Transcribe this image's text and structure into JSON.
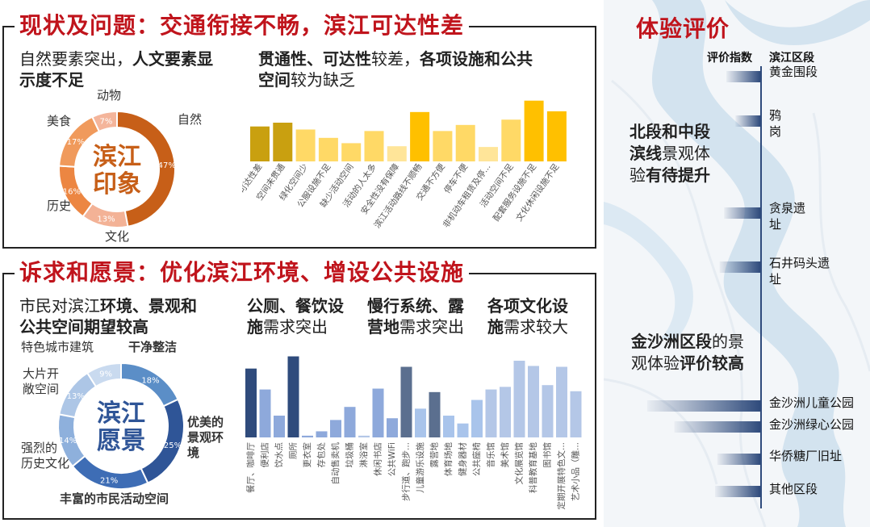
{
  "top_title": "现状及问题：交通衔接不畅，滨江可达性差",
  "bottom_title": "诉求和愿景：优化滨江环境、增设公共设施",
  "right_title": "体验评价",
  "top_left": {
    "line1_a": "自然要素突出，",
    "line1_b": "人文要素显",
    "line2_b": "示度不足"
  },
  "top_mid": {
    "line1_b1": "贯通性、可达性",
    "line1_a": "较差，",
    "line1_b2": "各项设施和公共",
    "line2_b": "空间",
    "line2_a": "较为缺乏"
  },
  "bottom_left": {
    "line1_a": "市民对滨江",
    "line1_b": "环境、景观和",
    "line2_b": "公共空间期望较高"
  },
  "bottom_mid": {
    "t1_l1_b": "公厕、餐饮设",
    "t1_l2_b": "施",
    "t1_l2_a": "需求突出",
    "t2_l1_b": "慢行系统、露",
    "t2_l2_b": "营地",
    "t2_l2_a": "需求突出",
    "t3_l1_b": "各项文化设",
    "t3_l2_b": "施",
    "t3_l2_a": "需求较大"
  },
  "right": {
    "header_score": "评价指数",
    "header_section": "滨江区段",
    "text1_l1_b": "北段和中段",
    "text1_l2_b": "滨线",
    "text1_l2_a": "景观体",
    "text1_l3_a": "验",
    "text1_l3_b": "有待提升",
    "text2_l1_b": "金沙洲区段",
    "text2_l1_a": "的景",
    "text2_l2_a": "观体验",
    "text2_l2_b": "评价较高"
  },
  "colors": {
    "title_red": "#c0141c",
    "orange_dark": "#c75f18",
    "blue_dark": "#2f5597",
    "gold": "#ffc000",
    "map_water": "#d3e3ef",
    "bar_navy": "#2f4b7c"
  },
  "chart_data": [
    {
      "type": "pie",
      "subtype": "donut",
      "center_label": [
        "滨江",
        "印象"
      ],
      "categories": [
        "自然",
        "文化",
        "历史",
        "美食",
        "动物"
      ],
      "values": [
        47,
        13,
        16,
        17,
        7
      ],
      "value_labels": [
        "47%",
        "13%",
        "16%",
        "17%",
        "7%"
      ],
      "colors": [
        "#c75f18",
        "#f3b296",
        "#ec8642",
        "#f09a5c",
        "#f4b59b"
      ]
    },
    {
      "type": "bar",
      "categories": [
        "可达性差",
        "空间未贯通",
        "绿化空间少",
        "公服设施不足",
        "缺少活动空间",
        "活动的人太多",
        "安全性没有保障",
        "滨江活动路线不顺畅",
        "交通不方便",
        "停车不便",
        "非机动车租赁及停...",
        "活动空间不足",
        "配套服务设施不足",
        "文化休闲设施不足"
      ],
      "values": [
        46,
        51,
        42,
        31,
        24,
        40,
        20,
        65,
        40,
        48,
        19,
        55,
        80,
        66
      ],
      "colors": [
        "#c9a010",
        "#c9a010",
        "#ffd966",
        "#ffd966",
        "#ffd966",
        "#ffd966",
        "#ffe599",
        "#ffc000",
        "#ffd966",
        "#ffd966",
        "#ffe599",
        "#ffd966",
        "#ffc000",
        "#ffc000"
      ],
      "ylim": [
        0,
        85
      ]
    },
    {
      "type": "pie",
      "subtype": "donut",
      "center_label": [
        "滨江",
        "愿景"
      ],
      "categories": [
        "干净整洁",
        "优美的景观环境",
        "丰富的市民活动空间",
        "强烈的历史文化",
        "大片开敞空间",
        "特色城市建筑"
      ],
      "values": [
        18,
        25,
        21,
        14,
        13,
        9
      ],
      "value_labels": [
        "18%",
        "25%",
        "21%",
        "14%",
        "13%",
        "9%"
      ],
      "colors": [
        "#5b8ec7",
        "#2f5597",
        "#3e6db5",
        "#8eb0dc",
        "#adc6e6",
        "#c9daef"
      ]
    },
    {
      "type": "bar",
      "categories": [
        "餐厅、咖啡厅",
        "便利店",
        "饮水点",
        "厕所",
        "更衣室",
        "存包处",
        "自动售卖机",
        "垃圾桶",
        "淋浴室",
        "休闲书店",
        "公共WiFi",
        "步行道、跑步...",
        "儿童游乐设施",
        "露营地",
        "体育场地",
        "健身器材",
        "公共座椅",
        "音乐馆",
        "美术馆",
        "文化展览馆",
        "科普教育基地",
        "图书馆",
        "定期开展特色文...",
        "艺术小品（雕..."
      ],
      "values": [
        79,
        55,
        25,
        93,
        2,
        7,
        20,
        35,
        2,
        56,
        22,
        81,
        33,
        52,
        25,
        16,
        43,
        55,
        58,
        88,
        82,
        60,
        81,
        53
      ],
      "colors": [
        "#2f4b7c",
        "#8ea9db",
        "#8ea9db",
        "#2f4b7c",
        "#8ea9db",
        "#8ea9db",
        "#8ea9db",
        "#8ea9db",
        "#b4c7e7",
        "#8ea9db",
        "#8ea9db",
        "#5b6f8f",
        "#a9c4eb",
        "#5b6f8f",
        "#a9c4eb",
        "#a9c4eb",
        "#a9c4eb",
        "#b4c7e7",
        "#b4c7e7",
        "#b4c7e7",
        "#b4c7e7",
        "#b4c7e7",
        "#b4c7e7",
        "#b4c7e7"
      ],
      "ylim": [
        0,
        100
      ]
    },
    {
      "type": "bar",
      "orientation": "horizontal",
      "title": "",
      "categories": [
        "黄金围段",
        "鸦岗",
        "贪泉遗址",
        "石井码头遗址",
        "金沙洲儿童公园",
        "金沙洲绿心公园",
        "华侨糖厂旧址",
        "其他区段"
      ],
      "values": [
        30,
        22,
        32,
        36,
        100,
        76,
        38,
        40
      ],
      "ylim": [
        0,
        100
      ]
    }
  ]
}
